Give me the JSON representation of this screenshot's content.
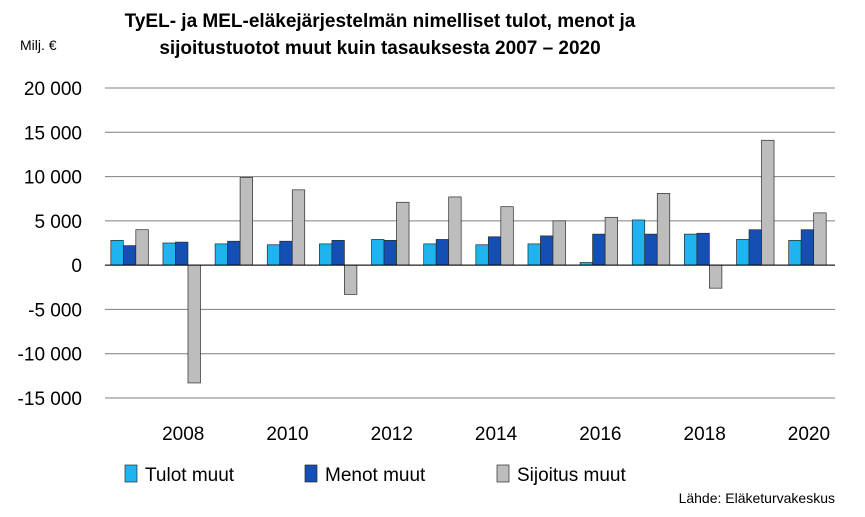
{
  "chart_data": {
    "type": "bar",
    "title_line1": "TyEL- ja MEL-eläkejärjestelmän nimelliset tulot, menot ja",
    "title_line2": "sijoitustuotot muut kuin tasauksesta 2007 – 2020",
    "unit_label": "Milj. €",
    "source": "Lähde: Eläketurvakeskus",
    "categories": [
      "2007",
      "2008",
      "2009",
      "2010",
      "2011",
      "2012",
      "2013",
      "2014",
      "2015",
      "2016",
      "2017",
      "2018",
      "2019",
      "2020"
    ],
    "xtick_labels": [
      "",
      "2008",
      "",
      "2010",
      "",
      "2012",
      "",
      "2014",
      "",
      "2016",
      "",
      "2018",
      "",
      "2020"
    ],
    "ytick_values": [
      20000,
      15000,
      10000,
      5000,
      0,
      -5000,
      -10000,
      -15000
    ],
    "ytick_labels": [
      "20 000",
      "15 000",
      "10 000",
      "5 000",
      "0",
      "-5 000",
      "-10 000",
      "-15 000"
    ],
    "ylim": [
      -15000,
      20000
    ],
    "grid": true,
    "legend_position": "bottom",
    "series": [
      {
        "name": "Tulot muut",
        "color": "#1fb4f0",
        "values": [
          2800,
          2500,
          2400,
          2300,
          2400,
          2900,
          2400,
          2300,
          2400,
          300,
          5100,
          3500,
          2900,
          2800
        ]
      },
      {
        "name": "Menot muut",
        "color": "#1450b4",
        "values": [
          2200,
          2600,
          2700,
          2700,
          2800,
          2800,
          2900,
          3200,
          3300,
          3500,
          3500,
          3600,
          4000,
          4000
        ]
      },
      {
        "name": "Sijoitus muut",
        "color": "#bdbdbd",
        "values": [
          4000,
          -13300,
          9900,
          8500,
          -3300,
          7100,
          7700,
          6600,
          5000,
          5400,
          8100,
          -2600,
          14100,
          5900
        ]
      }
    ]
  }
}
